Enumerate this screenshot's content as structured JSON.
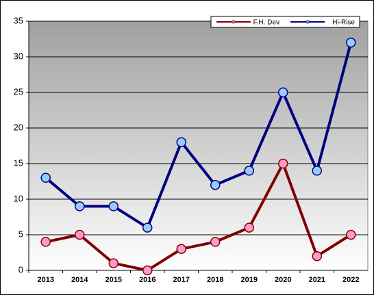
{
  "chart_data": {
    "type": "line",
    "categories": [
      "2013",
      "2014",
      "2015",
      "2016",
      "2017",
      "2018",
      "2019",
      "2020",
      "2021",
      "2022"
    ],
    "series": [
      {
        "name": "F.H. Dev.",
        "color": "#800000",
        "marker_color": "#ff99cc",
        "values": [
          4,
          5,
          1,
          0,
          3,
          4,
          6,
          15,
          2,
          5
        ]
      },
      {
        "name": "Hi-Rise",
        "color": "#000080",
        "marker_color": "#99ccff",
        "values": [
          13,
          9,
          9,
          6,
          18,
          12,
          14,
          25,
          14,
          32
        ]
      }
    ],
    "ylim": [
      0,
      35
    ],
    "yticks": [
      0,
      5,
      10,
      15,
      20,
      25,
      30,
      35
    ],
    "grid": true,
    "legend": "upper right"
  }
}
